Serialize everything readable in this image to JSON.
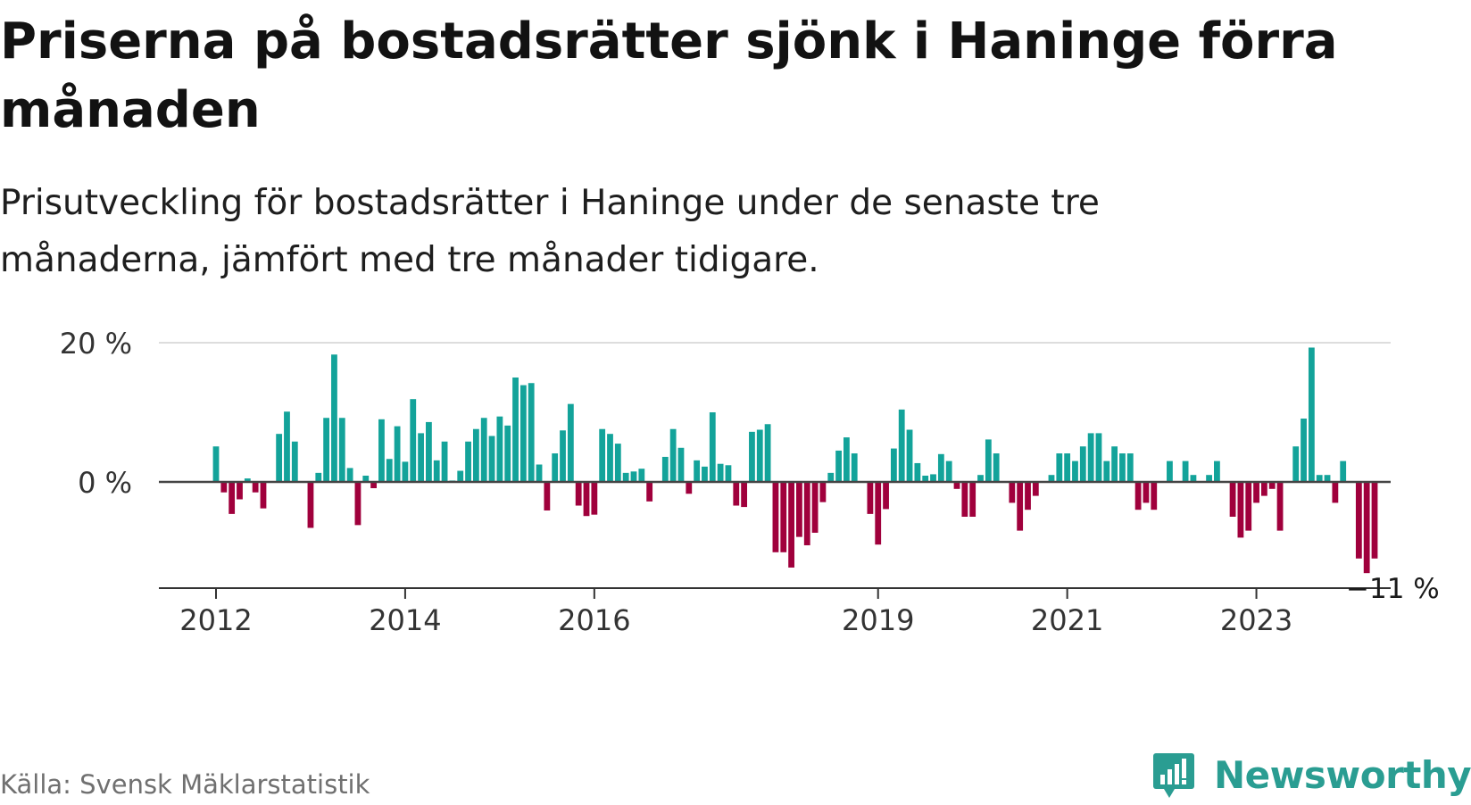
{
  "title": "Priserna på bostadsrätter sjönk i Haninge förra månaden",
  "subtitle": "Prisutveckling för bostadsrätter i Haninge under de senaste tre månaderna, jämfört med tre månader tidigare.",
  "source": "Källa: Svensk Mäklarstatistik",
  "logo": {
    "name": "Newsworthy",
    "icon": "newsworthy-logo-icon"
  },
  "colors": {
    "positive": "#13a39a",
    "negative": "#a0003c",
    "zero_line": "#444444",
    "grid": "#dddddd"
  },
  "chart_data": {
    "type": "bar",
    "title": "Priserna på bostadsrätter sjönk i Haninge förra månaden",
    "xlabel": "",
    "ylabel": "",
    "ylim": [
      -15,
      20
    ],
    "y_ticks": [
      {
        "value": 0,
        "label": "0 %"
      },
      {
        "value": 20,
        "label": "20 %"
      }
    ],
    "x_ticks": [
      "2012",
      "2014",
      "2016",
      "2019",
      "2021",
      "2023"
    ],
    "start_period": "2012-01",
    "frequency": "monthly",
    "last_label": "−11 %",
    "values": [
      5.1,
      -1.5,
      -4.6,
      -2.5,
      0.5,
      -1.5,
      -3.8,
      0,
      6.9,
      10.1,
      5.8,
      0,
      -6.6,
      1.3,
      9.2,
      18.3,
      9.2,
      2.0,
      -6.2,
      0.9,
      -0.9,
      9.0,
      3.3,
      8.0,
      2.9,
      11.9,
      7.0,
      8.6,
      3.1,
      5.8,
      0.2,
      1.6,
      5.8,
      7.6,
      9.2,
      6.6,
      9.4,
      8.1,
      15.0,
      13.9,
      14.2,
      2.5,
      -4.1,
      4.1,
      7.4,
      11.2,
      -3.4,
      -4.9,
      -4.7,
      7.6,
      6.9,
      5.5,
      1.3,
      1.5,
      1.9,
      -2.8,
      0,
      3.6,
      7.6,
      4.9,
      -1.7,
      3.1,
      2.2,
      10.0,
      2.6,
      2.4,
      -3.4,
      -3.6,
      7.2,
      7.5,
      8.3,
      -10.1,
      -10.1,
      -12.3,
      -7.9,
      -9.1,
      -7.3,
      -2.9,
      1.3,
      4.5,
      6.4,
      4.1,
      0,
      -4.6,
      -9.0,
      -3.9,
      4.8,
      10.4,
      7.5,
      2.7,
      0.9,
      1.1,
      4.0,
      3.0,
      -1.0,
      -5.0,
      -5.0,
      1.0,
      6.1,
      4.1,
      0,
      -3.0,
      -7.0,
      -4.0,
      -2.0,
      0,
      1.0,
      4.1,
      4.1,
      3.0,
      5.1,
      7.0,
      7.0,
      3.0,
      5.1,
      4.1,
      4.1,
      -4.0,
      -3.0,
      -4.0,
      0,
      3.0,
      0,
      3.0,
      1.0,
      0,
      1.0,
      3.0,
      0,
      -5.0,
      -8.0,
      -7.0,
      -3.0,
      -2.0,
      -1.0,
      -7.0,
      0,
      5.1,
      9.1,
      19.3,
      1.0,
      1.0,
      -3.0,
      3.0,
      0,
      -11.0,
      -13.1,
      -11.0
    ]
  }
}
